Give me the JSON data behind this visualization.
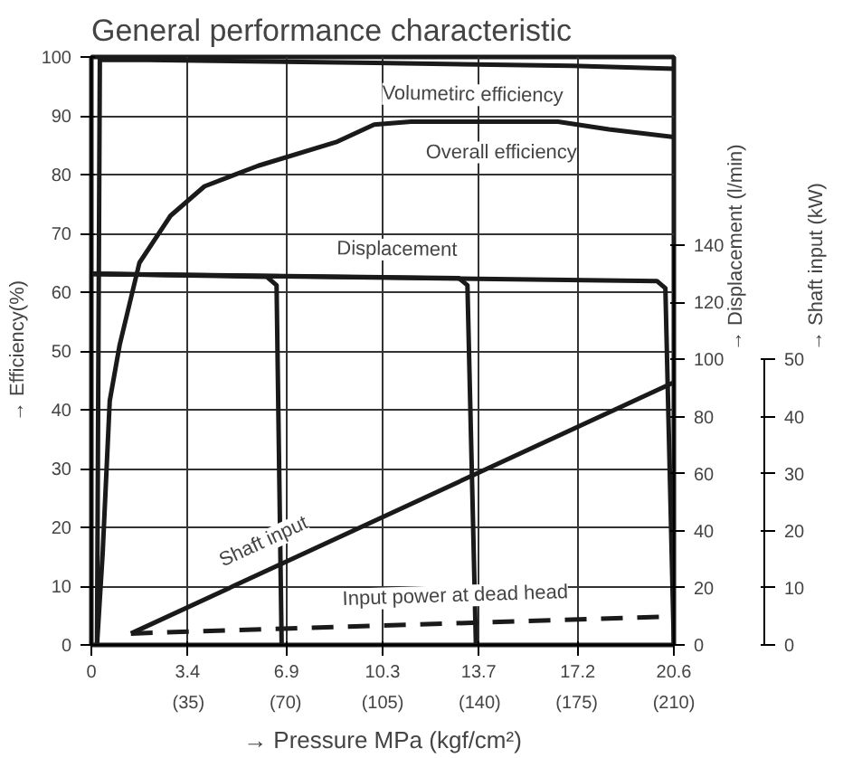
{
  "chart_data": {
    "type": "line",
    "title": "General performance characteristic",
    "xlabel": "→ Pressure MPa (kgf/cm²)",
    "ylabel": "→ Efficiency(%)",
    "y2label": "→ Displacement (l/min)",
    "y3label": "→ Shaft input (kW)",
    "xlim": [
      0,
      20.6
    ],
    "ylim": [
      0,
      100
    ],
    "x2lim": [
      0,
      210
    ],
    "y2lim": [
      0,
      206
    ],
    "y3lim": [
      0,
      103
    ],
    "xticks": [
      0,
      3.4,
      6.9,
      10.3,
      13.7,
      17.2,
      20.6
    ],
    "x2ticks": [
      {
        "value": 35,
        "label": "(35)"
      },
      {
        "value": 70,
        "label": "(70)"
      },
      {
        "value": 105,
        "label": "(105)"
      },
      {
        "value": 140,
        "label": "(140)"
      },
      {
        "value": 175,
        "label": "(175)"
      },
      {
        "value": 210,
        "label": "(210)"
      }
    ],
    "yticks": [
      0,
      10,
      20,
      30,
      40,
      50,
      60,
      70,
      80,
      90,
      100
    ],
    "y2ticks": [
      0,
      20,
      40,
      60,
      80,
      100,
      120,
      140
    ],
    "y3ticks": [
      0,
      10,
      20,
      30,
      40,
      50
    ],
    "grid": true,
    "marker": "none",
    "series": [
      {
        "x": [
          0.2,
          0.3,
          2,
          10,
          17,
          20.6
        ],
        "values": [
          0,
          99.5,
          99.5,
          99,
          98.5,
          98
        ],
        "color": "#1a1a1a",
        "line_style": "solid"
      },
      {
        "x": [
          0.2,
          0.4,
          0.65,
          1.0,
          1.7,
          2.8,
          4.0,
          5.9,
          8.7,
          10.0,
          11.3,
          16.5,
          18.3,
          20.6
        ],
        "values": [
          0,
          15.6,
          41.5,
          51,
          65,
          73,
          78,
          81.5,
          85.6,
          88.5,
          89,
          89,
          87.7,
          86.4
        ],
        "color": "#1a1a1a",
        "line_style": "solid"
      },
      {
        "axis": "y2",
        "x": [
          0,
          6.2,
          6.55,
          6.73
        ],
        "values": [
          130,
          129,
          126,
          0
        ],
        "color": "#1a1a1a",
        "line_style": "solid"
      },
      {
        "axis": "y2",
        "x": [
          0,
          13.0,
          13.3,
          13.6
        ],
        "values": [
          130,
          128.5,
          126,
          0
        ],
        "color": "#1a1a1a",
        "line_style": "solid"
      },
      {
        "axis": "y2",
        "x": [
          0,
          20.0,
          20.3,
          20.6
        ],
        "values": [
          130,
          127.5,
          125,
          0
        ],
        "color": "#1a1a1a",
        "line_style": "solid"
      },
      {
        "axis": "y3",
        "x": [
          1.4,
          20.6
        ],
        "values": [
          2,
          46
        ],
        "color": "#1a1a1a",
        "line_style": "solid"
      },
      {
        "axis": "y3",
        "x": [
          1.4,
          20.6
        ],
        "values": [
          2,
          5
        ],
        "color": "#1a1a1a",
        "line_style": "dashed"
      }
    ],
    "annotations": [
      {
        "text": "Volumetirc efficiency",
        "x": 13.5,
        "y": 98.75
      },
      {
        "text": "Overall efficiency",
        "x": 14.5,
        "y": 89
      },
      {
        "text": "Displacement",
        "x": 10.8,
        "y": 62.6
      },
      {
        "text": "Shaft input",
        "x": 6.5,
        "y": 13.3
      },
      {
        "text": "Input power at dead head",
        "x": 12.9,
        "y": 3.7
      }
    ]
  }
}
